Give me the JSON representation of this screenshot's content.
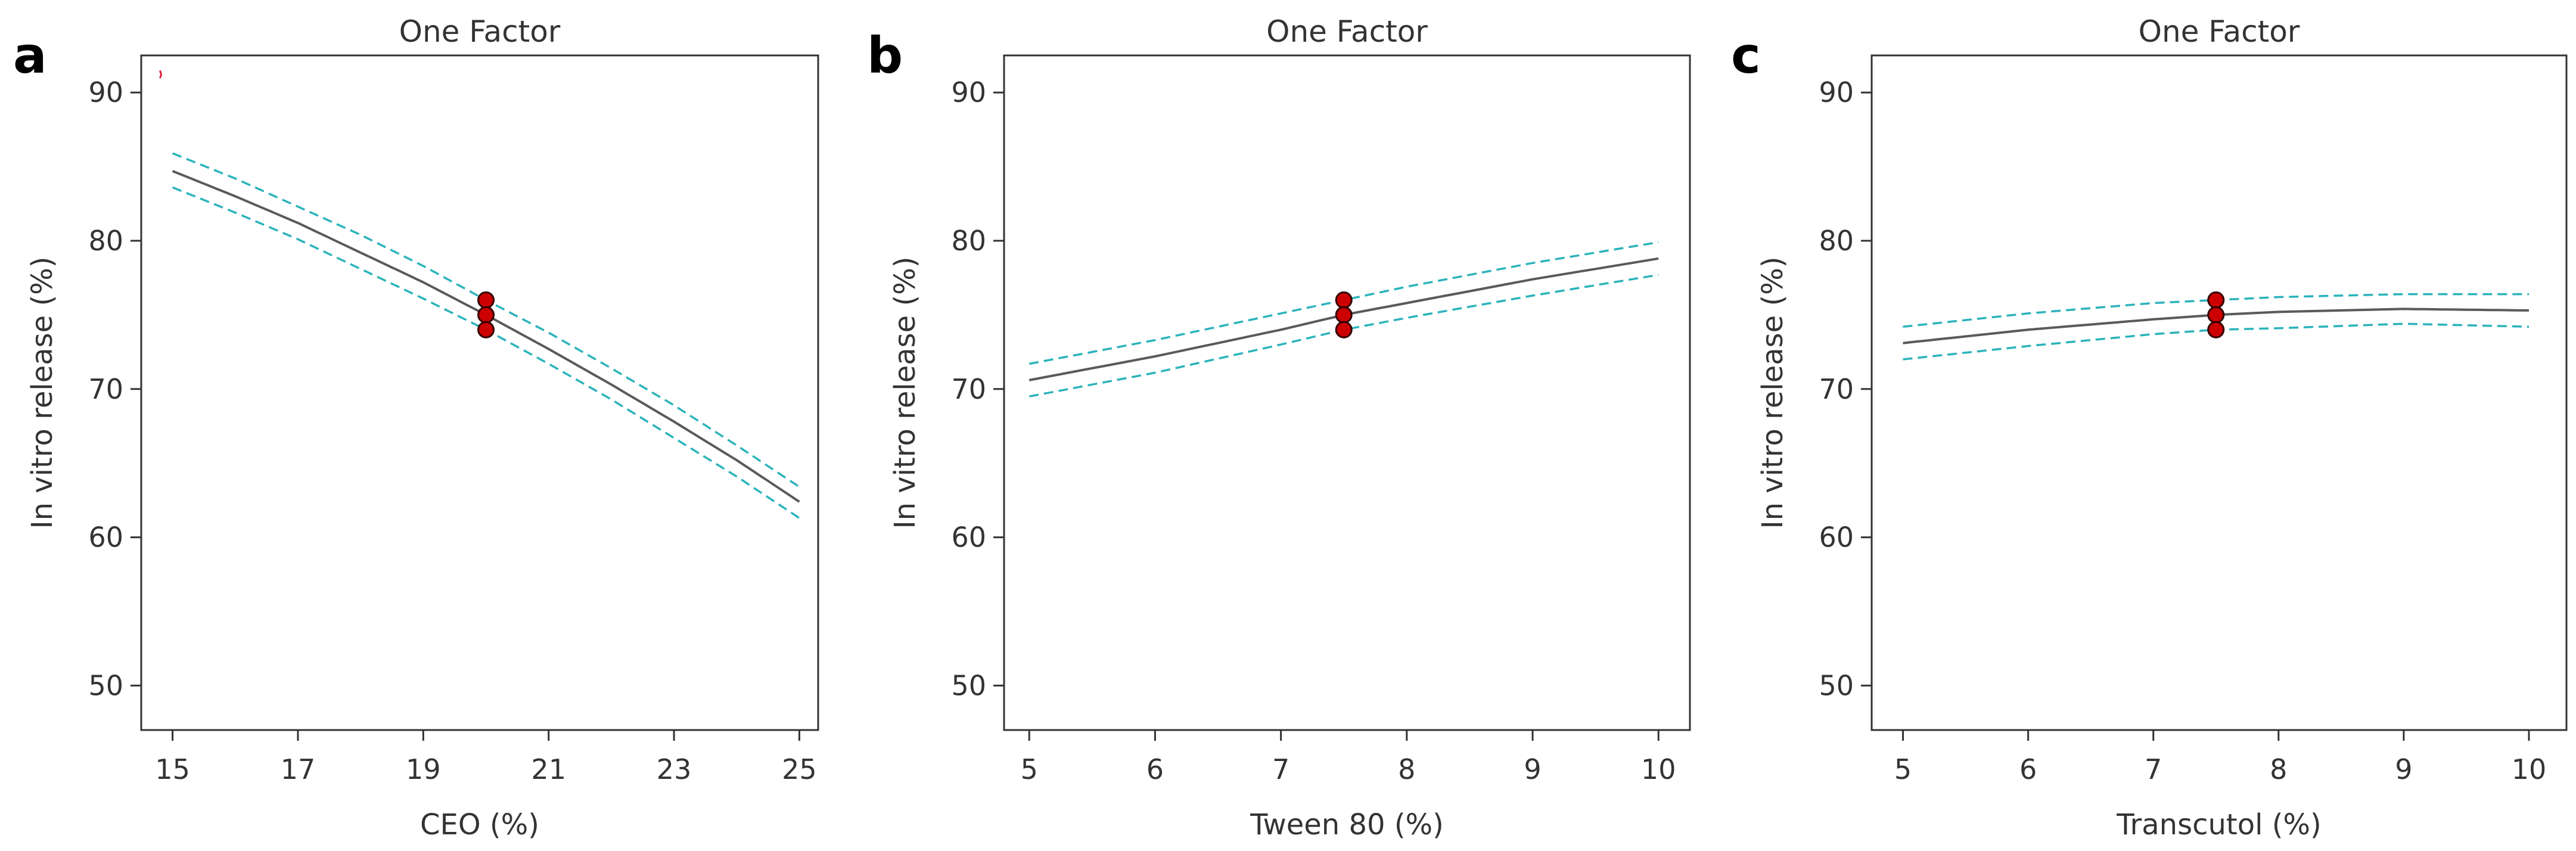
{
  "colors": {
    "fit_line": "#5a5a5a",
    "ci_line": "#2bb3bb",
    "design_point_fill": "#cc0000",
    "design_point_stroke": "#330000",
    "axis": "#333333",
    "stray_mark": "#e0203a"
  },
  "chart_data": [
    {
      "type": "line",
      "panel_letter": "a",
      "title": "One Factor",
      "xlabel": "CEO (%)",
      "ylabel": "In vitro release (%)",
      "xlim": [
        14.5,
        25.3
      ],
      "ylim": [
        47,
        92.5
      ],
      "xticks": [
        15,
        17,
        19,
        21,
        23,
        25
      ],
      "yticks": [
        50,
        60,
        70,
        80,
        90
      ],
      "grid": false,
      "series": [
        {
          "name": "fit",
          "style": "solid",
          "x": [
            15,
            16,
            17,
            18,
            19,
            20,
            21,
            22,
            23,
            24,
            25
          ],
          "y": [
            84.7,
            83.0,
            81.2,
            79.2,
            77.2,
            75.0,
            72.7,
            70.3,
            67.8,
            65.2,
            62.4
          ]
        },
        {
          "name": "upper 95% CI",
          "style": "dashed",
          "x": [
            15,
            16,
            17,
            18,
            19,
            20,
            21,
            22,
            23,
            24,
            25
          ],
          "y": [
            85.9,
            84.2,
            82.3,
            80.4,
            78.3,
            76.0,
            73.8,
            71.4,
            68.9,
            66.2,
            63.4
          ]
        },
        {
          "name": "lower 95% CI",
          "style": "dashed",
          "x": [
            15,
            16,
            17,
            18,
            19,
            20,
            21,
            22,
            23,
            24,
            25
          ],
          "y": [
            83.6,
            81.9,
            80.1,
            78.1,
            76.1,
            74.0,
            71.7,
            69.3,
            66.7,
            64.1,
            61.3
          ]
        }
      ],
      "design_points": [
        {
          "x": 20,
          "y": 76
        },
        {
          "x": 20,
          "y": 75
        },
        {
          "x": 20,
          "y": 74
        }
      ],
      "stray_mark": {
        "x": 14.8,
        "y": 91
      }
    },
    {
      "type": "line",
      "panel_letter": "b",
      "title": "One Factor",
      "xlabel": "Tween 80 (%)",
      "ylabel": "In vitro release (%)",
      "xlim": [
        4.8,
        10.25
      ],
      "ylim": [
        47,
        92.5
      ],
      "xticks": [
        5,
        6,
        7,
        8,
        9,
        10
      ],
      "yticks": [
        50,
        60,
        70,
        80,
        90
      ],
      "grid": false,
      "series": [
        {
          "name": "fit",
          "style": "solid",
          "x": [
            5,
            6,
            7,
            7.5,
            8,
            9,
            10
          ],
          "y": [
            70.6,
            72.2,
            74.0,
            75.0,
            75.8,
            77.4,
            78.8
          ]
        },
        {
          "name": "upper 95% CI",
          "style": "dashed",
          "x": [
            5,
            6,
            7,
            7.5,
            8,
            9,
            10
          ],
          "y": [
            71.7,
            73.3,
            75.1,
            76.0,
            76.9,
            78.5,
            79.9
          ]
        },
        {
          "name": "lower 95% CI",
          "style": "dashed",
          "x": [
            5,
            6,
            7,
            7.5,
            8,
            9,
            10
          ],
          "y": [
            69.5,
            71.1,
            73.0,
            74.0,
            74.8,
            76.3,
            77.7
          ]
        }
      ],
      "design_points": [
        {
          "x": 7.5,
          "y": 76
        },
        {
          "x": 7.5,
          "y": 75
        },
        {
          "x": 7.5,
          "y": 74
        }
      ]
    },
    {
      "type": "line",
      "panel_letter": "c",
      "title": "One Factor",
      "xlabel": "Transcutol (%)",
      "ylabel": "In vitro release (%)",
      "xlim": [
        4.75,
        10.3
      ],
      "ylim": [
        47,
        92.5
      ],
      "xticks": [
        5,
        6,
        7,
        8,
        9,
        10
      ],
      "yticks": [
        50,
        60,
        70,
        80,
        90
      ],
      "grid": false,
      "series": [
        {
          "name": "fit",
          "style": "solid",
          "x": [
            5,
            6,
            7,
            7.5,
            8,
            9,
            10
          ],
          "y": [
            73.1,
            74.0,
            74.7,
            75.0,
            75.2,
            75.4,
            75.3
          ]
        },
        {
          "name": "upper 95% CI",
          "style": "dashed",
          "x": [
            5,
            6,
            7,
            7.5,
            8,
            9,
            10
          ],
          "y": [
            74.2,
            75.1,
            75.8,
            76.0,
            76.2,
            76.4,
            76.4
          ]
        },
        {
          "name": "lower 95% CI",
          "style": "dashed",
          "x": [
            5,
            6,
            7,
            7.5,
            8,
            9,
            10
          ],
          "y": [
            72.0,
            72.9,
            73.7,
            74.0,
            74.1,
            74.4,
            74.2
          ]
        }
      ],
      "design_points": [
        {
          "x": 7.5,
          "y": 76
        },
        {
          "x": 7.5,
          "y": 75
        },
        {
          "x": 7.5,
          "y": 74
        }
      ]
    }
  ]
}
